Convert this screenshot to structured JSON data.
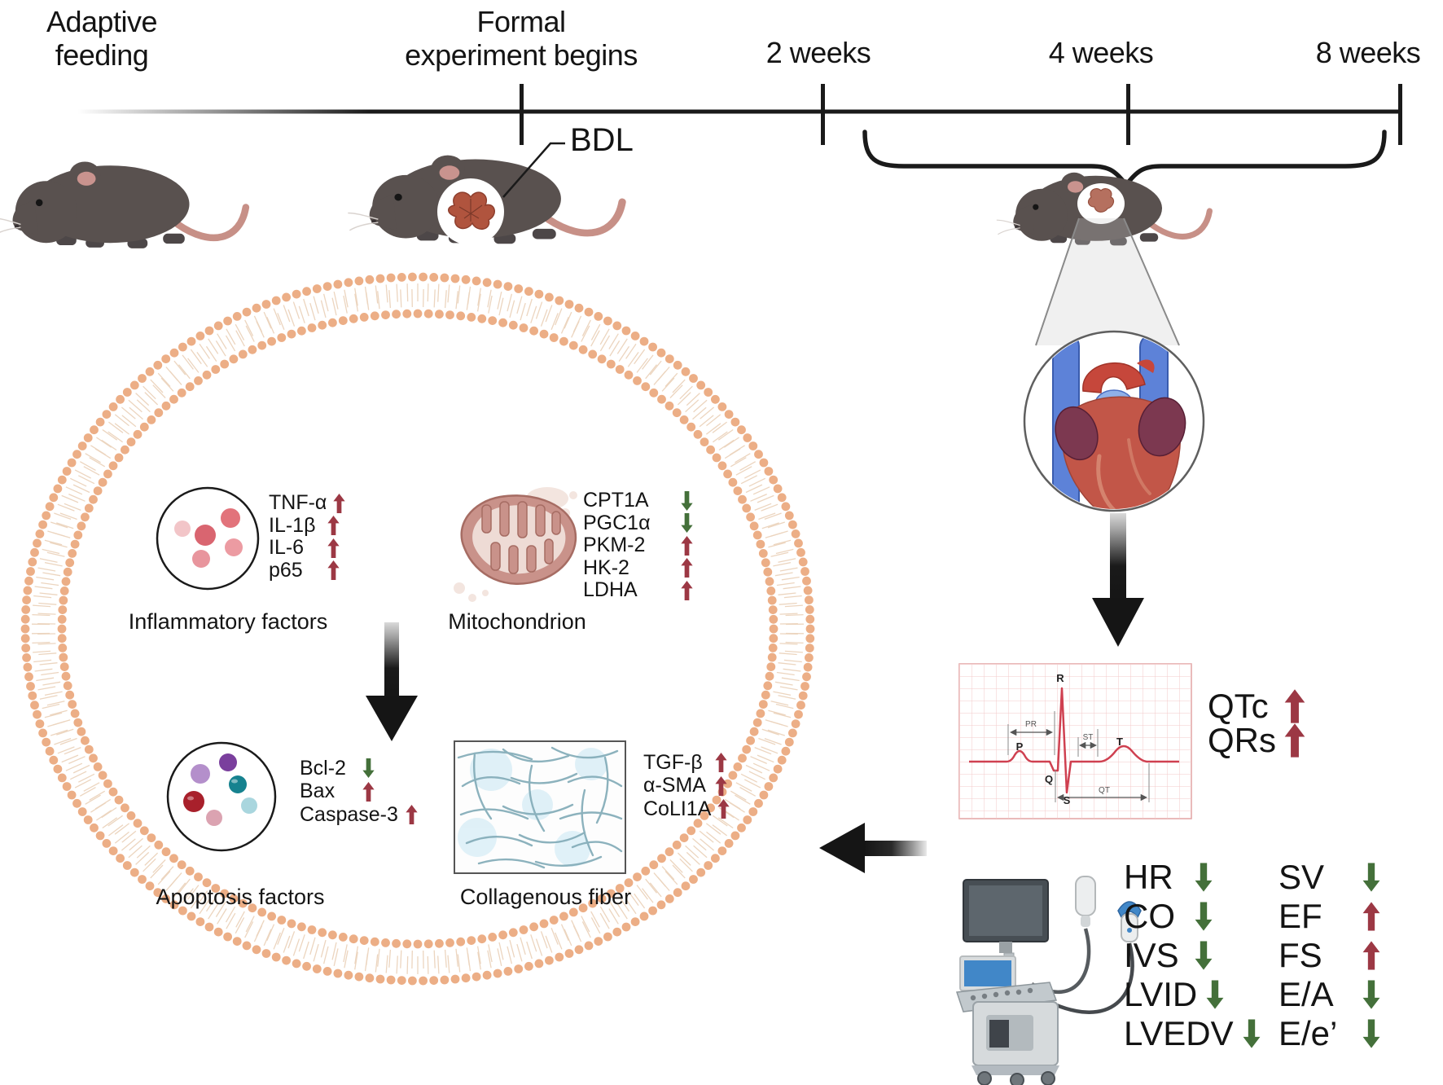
{
  "timeline": {
    "adaptive": "Adaptive feeding",
    "formal": "Formal experiment begins",
    "w2": "2 weeks",
    "w4": "4 weeks",
    "w8": "8 weeks"
  },
  "bdl": "BDL",
  "cell": {
    "inflammatory": {
      "caption": "Inflammatory factors",
      "items": [
        {
          "label": "TNF-α",
          "dir": "up"
        },
        {
          "label": "IL-1β",
          "dir": "up"
        },
        {
          "label": "IL-6",
          "dir": "up"
        },
        {
          "label": "p65",
          "dir": "up"
        }
      ]
    },
    "mitochondrion": {
      "caption": "Mitochondrion",
      "items": [
        {
          "label": "CPT1A",
          "dir": "down"
        },
        {
          "label": "PGC1α",
          "dir": "down"
        },
        {
          "label": "PKM-2",
          "dir": "up"
        },
        {
          "label": "HK-2",
          "dir": "up"
        },
        {
          "label": "LDHA",
          "dir": "up"
        }
      ]
    },
    "apoptosis": {
      "caption": "Apoptosis factors",
      "items": [
        {
          "label": "Bcl-2",
          "dir": "down"
        },
        {
          "label": "Bax",
          "dir": "up"
        },
        {
          "label": "Caspase-3",
          "dir": "up"
        }
      ]
    },
    "collagen": {
      "caption": "Collagenous fiber",
      "items": [
        {
          "label": "TGF-β",
          "dir": "up"
        },
        {
          "label": "α-SMA",
          "dir": "up"
        },
        {
          "label": "CoLI1A",
          "dir": "up"
        }
      ]
    }
  },
  "ecg": {
    "waves": {
      "p": "P",
      "q": "Q",
      "r": "R",
      "s": "S",
      "t": "T"
    },
    "intervals": {
      "pr": "PR",
      "st": "ST",
      "qt": "QT"
    },
    "readouts": [
      {
        "label": "QTc",
        "dir": "up"
      },
      {
        "label": "QRs",
        "dir": "up"
      }
    ]
  },
  "echo": {
    "col1": [
      {
        "label": "HR",
        "dir": "down"
      },
      {
        "label": "CO",
        "dir": "down"
      },
      {
        "label": "IVS",
        "dir": "down"
      },
      {
        "label": "LVID",
        "dir": "down"
      },
      {
        "label": "LVEDV",
        "dir": "down"
      }
    ],
    "col2": [
      {
        "label": "SV",
        "dir": "down"
      },
      {
        "label": "EF",
        "dir": "up"
      },
      {
        "label": "FS",
        "dir": "up"
      },
      {
        "label": "E/A",
        "dir": "down"
      },
      {
        "label": "E/e’",
        "dir": "down"
      }
    ]
  },
  "colors": {
    "arrow_up": "#9c3844",
    "arrow_down": "#44703a",
    "membrane_bead": "#ecae86",
    "membrane_tail": "#ecd5bf",
    "ecg_trace": "#cf4050"
  }
}
